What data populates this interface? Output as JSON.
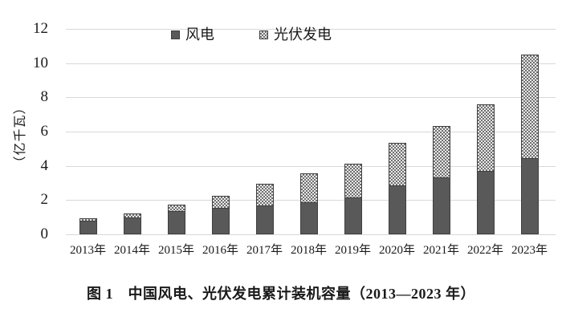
{
  "figure": {
    "caption": "图 1　中国风电、光伏发电累计装机容量（2013—2023 年）"
  },
  "chart_data": {
    "type": "bar",
    "stacked": true,
    "title": "",
    "categories": [
      "2013年",
      "2014年",
      "2015年",
      "2016年",
      "2017年",
      "2018年",
      "2019年",
      "2020年",
      "2021年",
      "2022年",
      "2023年"
    ],
    "series": [
      {
        "name": "风电",
        "values": [
          0.77,
          0.96,
          1.31,
          1.49,
          1.64,
          1.84,
          2.1,
          2.81,
          3.28,
          3.65,
          4.41
        ],
        "color": "#595959",
        "fill": "solid"
      },
      {
        "name": "光伏发电",
        "values": [
          0.19,
          0.28,
          0.43,
          0.77,
          1.3,
          1.74,
          2.04,
          2.53,
          3.06,
          3.93,
          6.09
        ],
        "color": "#e9e9e9",
        "pattern_color": "#6f6f6f",
        "fill": "checkerboard"
      }
    ],
    "totals": [
      0.96,
      1.24,
      1.74,
      2.26,
      2.94,
      3.58,
      4.14,
      5.34,
      6.34,
      7.58,
      10.5
    ],
    "ylabel": "（亿千瓦）",
    "yticks": [
      0,
      2,
      4,
      6,
      8,
      10,
      12
    ],
    "ylim": [
      0,
      12
    ],
    "grid": true,
    "legend_position": "top-center"
  },
  "colors": {
    "text": "#1a1a1a",
    "gridline": "#d8d8d8",
    "wind_bar": "#595959",
    "bar_border": "#3f3f3f",
    "solar_pattern_bg": "#e9e9e9",
    "solar_pattern_dot": "#6f6f6f"
  }
}
